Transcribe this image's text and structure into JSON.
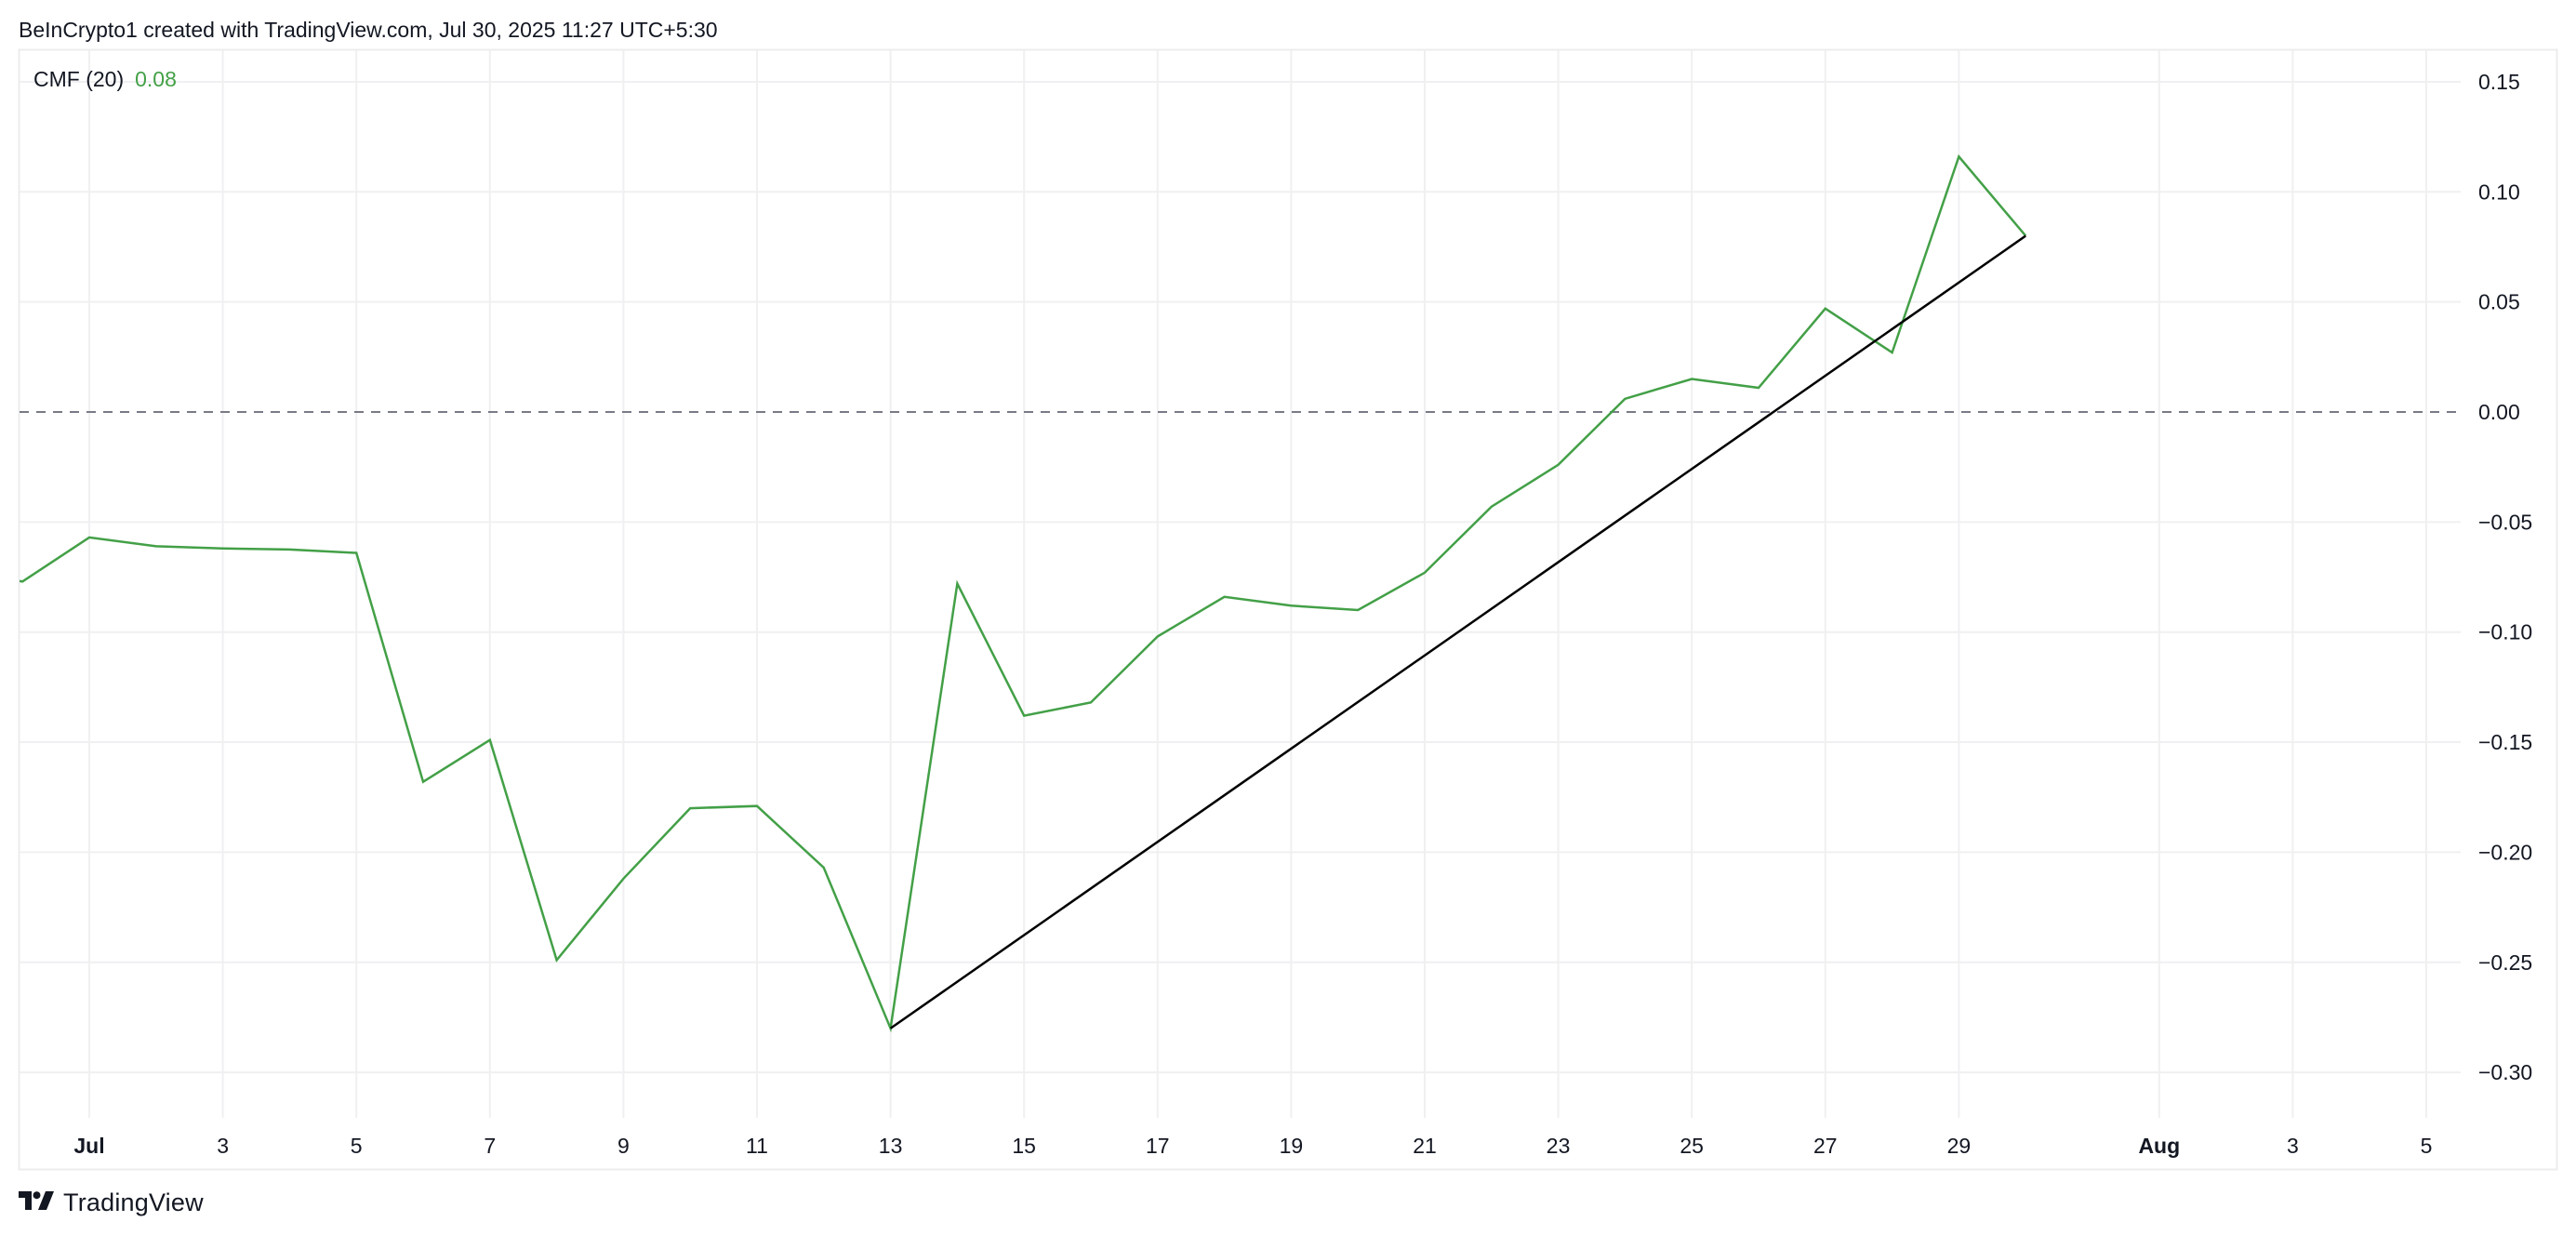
{
  "header": {
    "attribution": "BeInCrypto1 created with TradingView.com, Jul 30, 2025 11:27 UTC+5:30"
  },
  "legend": {
    "indicator": "CMF (20)",
    "value": "0.08"
  },
  "footer": {
    "brand": "TradingView",
    "logo_icon": "tradingview-logo-icon"
  },
  "colors": {
    "line": "#43a047",
    "trendline": "#000000",
    "zero_line": "#787b86",
    "grid": "#f0f0f2",
    "border": "#ececee",
    "text": "#131722"
  },
  "chart_data": {
    "type": "line",
    "title": "CMF (20)",
    "xlabel": "",
    "ylabel": "",
    "ylim": [
      -0.33,
      0.165
    ],
    "yticks": [
      0.15,
      0.1,
      0.05,
      0.0,
      -0.05,
      -0.1,
      -0.15,
      -0.2,
      -0.25,
      -0.3
    ],
    "ytick_labels": [
      "0.15",
      "0.10",
      "0.05",
      "0.00",
      "−0.05",
      "−0.10",
      "−0.15",
      "−0.20",
      "−0.25",
      "−0.30"
    ],
    "xticks": [
      {
        "label": "Jul",
        "day": 0,
        "bold": true
      },
      {
        "label": "3",
        "day": 2
      },
      {
        "label": "5",
        "day": 4
      },
      {
        "label": "7",
        "day": 6
      },
      {
        "label": "9",
        "day": 8
      },
      {
        "label": "11",
        "day": 10
      },
      {
        "label": "13",
        "day": 12
      },
      {
        "label": "15",
        "day": 14
      },
      {
        "label": "17",
        "day": 16
      },
      {
        "label": "19",
        "day": 18
      },
      {
        "label": "21",
        "day": 20
      },
      {
        "label": "23",
        "day": 22
      },
      {
        "label": "25",
        "day": 24
      },
      {
        "label": "27",
        "day": 26
      },
      {
        "label": "29",
        "day": 28
      },
      {
        "label": "Aug",
        "day": 31,
        "bold": true
      },
      {
        "label": "3",
        "day": 33
      },
      {
        "label": "5",
        "day": 35
      }
    ],
    "grid": true,
    "zero_line": {
      "value": 0.0,
      "style": "dashed"
    },
    "x": [
      "Jun 30",
      "Jul 1",
      "Jul 2",
      "Jul 3",
      "Jul 4",
      "Jul 5",
      "Jul 6",
      "Jul 7",
      "Jul 8",
      "Jul 9",
      "Jul 10",
      "Jul 11",
      "Jul 12",
      "Jul 13",
      "Jul 14",
      "Jul 15",
      "Jul 16",
      "Jul 17",
      "Jul 18",
      "Jul 19",
      "Jul 20",
      "Jul 21",
      "Jul 22",
      "Jul 23",
      "Jul 24",
      "Jul 25",
      "Jul 26",
      "Jul 27",
      "Jul 28",
      "Jul 29",
      "Jul 30"
    ],
    "series": [
      {
        "name": "CMF (20)",
        "values": [
          -0.077,
          -0.057,
          -0.061,
          -0.062,
          -0.0625,
          -0.064,
          -0.168,
          -0.149,
          -0.249,
          -0.212,
          -0.18,
          -0.179,
          -0.207,
          -0.28,
          -0.078,
          -0.138,
          -0.132,
          -0.102,
          -0.084,
          -0.088,
          -0.09,
          -0.073,
          -0.043,
          -0.024,
          0.006,
          0.015,
          0.011,
          0.047,
          0.027,
          0.116,
          0.08
        ]
      }
    ],
    "annotations": [
      {
        "type": "trendline",
        "from": {
          "x": "Jul 13",
          "y": -0.28
        },
        "to": {
          "x": "Jul 30",
          "y": 0.08
        },
        "color": "#000000"
      }
    ]
  }
}
